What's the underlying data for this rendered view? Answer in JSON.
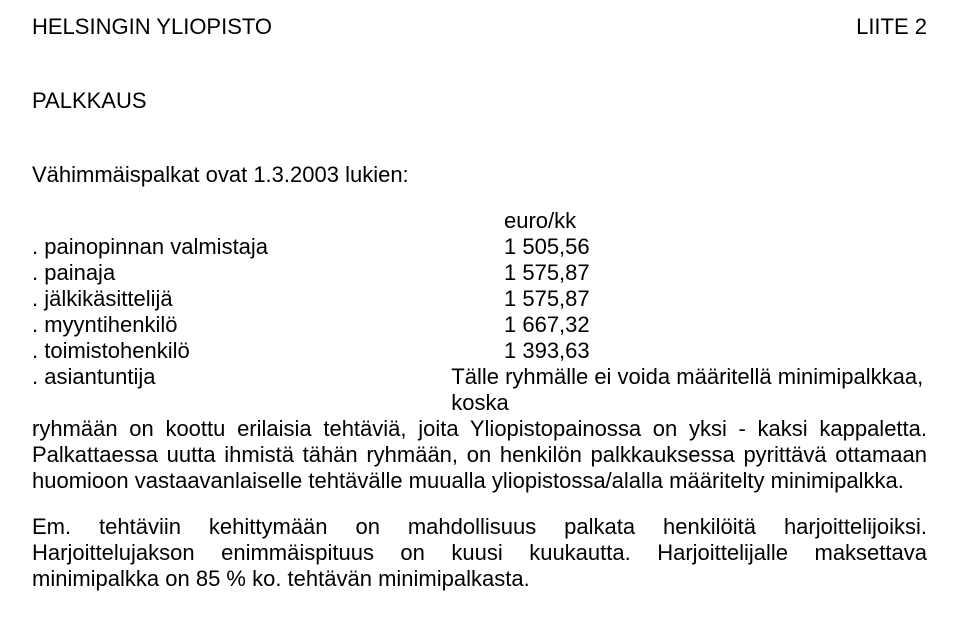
{
  "header": {
    "left": "HELSINGIN YLIOPISTO",
    "right": "LIITE 2"
  },
  "sectionTitle": "PALKKAUS",
  "introLine": "Vähimmäispalkat ovat 1.3.2003 lukien:",
  "colHeader": "euro/kk",
  "rows": [
    {
      "label": ". painopinnan valmistaja",
      "value": "1 505,56"
    },
    {
      "label": ". painaja",
      "value": "1 575,87"
    },
    {
      "label": ". jälkikäsittelijä",
      "value": "1 575,87"
    },
    {
      "label": ". myyntihenkilö",
      "value": "1 667,32"
    },
    {
      "label": ". toimistohenkilö",
      "value": "1 393,63"
    }
  ],
  "asiantuntija": {
    "label": ". asiantuntija",
    "firstLineRest": "Tälle ryhmälle ei voida määritellä minimipalkkaa, koska"
  },
  "bodyText": "ryhmään on koottu erilaisia tehtäviä, joita Yliopistopainossa on yksi - kaksi kappaletta. Palkattaessa uutta ihmistä tähän ryhmään, on henkilön palkkauksessa pyrittävä ottamaan huomioon vastaavanlaiselle tehtävälle muualla yliopistossa/alalla määritelty minimipalkka.",
  "bodyText2": "Em. tehtäviin kehittymään on mahdollisuus palkata henkilöitä harjoittelijoiksi. Harjoittelujakson enimmäispituus on kuusi kuukautta. Harjoittelijalle maksettava minimipalkka on 85 % ko. tehtävän minimipalkasta."
}
